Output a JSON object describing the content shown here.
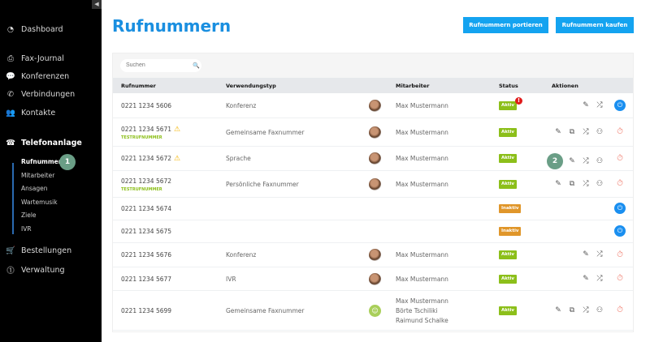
{
  "sidebar": {
    "collapse_icon": "collapse-left-icon",
    "items": [
      {
        "label": "Dashboard",
        "icon": "dashboard-icon",
        "glyph": "◔"
      },
      {
        "label": "Fax-Journal",
        "icon": "printer-icon",
        "glyph": "⎙"
      },
      {
        "label": "Konferenzen",
        "icon": "chat-bubbles-icon",
        "glyph": "💬"
      },
      {
        "label": "Verbindungen",
        "icon": "phone-icon",
        "glyph": "✆"
      },
      {
        "label": "Kontakte",
        "icon": "contacts-icon",
        "glyph": "👥"
      },
      {
        "label": "Telefonanlage",
        "icon": "phone-system-icon",
        "glyph": "☎",
        "active": true
      },
      {
        "label": "Bestellungen",
        "icon": "cart-icon",
        "glyph": "🛒"
      },
      {
        "label": "Verwaltung",
        "icon": "admin-icon",
        "glyph": "⓵"
      }
    ],
    "subitems": [
      {
        "label": "Rufnummern",
        "active": true
      },
      {
        "label": "Mitarbeiter"
      },
      {
        "label": "Ansagen"
      },
      {
        "label": "Wartemusik"
      },
      {
        "label": "Ziele"
      },
      {
        "label": "IVR"
      }
    ],
    "badge": "1"
  },
  "page": {
    "title": "Rufnummern",
    "btn_port": "Rufnummern portieren",
    "btn_buy": "Rufnummern kaufen"
  },
  "search": {
    "placeholder": "Suchen"
  },
  "columns": [
    "Rufnummer",
    "Verwendungstyp",
    "Mitarbeiter",
    "Status",
    "Aktionen"
  ],
  "colors": {
    "accent": "#14a3f0",
    "aktiv": "#8cbf1a",
    "inaktiv": "#e0962a",
    "alert": "#e01b1b"
  },
  "rows": [
    {
      "number": "0221 1234 5606",
      "type": "Konferenz",
      "employees": [
        "Max Mustermann"
      ],
      "status": "Aktiv",
      "alert": "!",
      "actions": [
        "edit",
        "forward"
      ],
      "power": "blue"
    },
    {
      "number": "0221 1234 5671",
      "warning": true,
      "test": "TESTRUFNUMMER",
      "type": "Gemeinsame Faxnummer",
      "employees": [
        "Max Mustermann"
      ],
      "status": "Aktiv",
      "actions": [
        "edit",
        "fax",
        "forward",
        "user"
      ],
      "power": "red"
    },
    {
      "number": "0221 1234 5672",
      "warning": true,
      "type": "Sprache",
      "employees": [
        "Max Mustermann"
      ],
      "status": "Aktiv",
      "badge": "2",
      "actions": [
        "edit",
        "forward",
        "user"
      ],
      "power": "red"
    },
    {
      "number": "0221 1234 5672",
      "test": "TESTRUFNUMMER",
      "type": "Persönliche Faxnummer",
      "employees": [
        "Max Mustermann"
      ],
      "status": "Aktiv",
      "actions": [
        "edit",
        "fax",
        "forward",
        "user"
      ],
      "power": "red"
    },
    {
      "number": "0221 1234 5674",
      "status": "Inaktiv",
      "actions": [],
      "power": "blue"
    },
    {
      "number": "0221 1234 5675",
      "status": "Inaktiv",
      "actions": [],
      "power": "blue"
    },
    {
      "number": "0221 1234 5676",
      "type": "Konferenz",
      "employees": [
        "Max Mustermann"
      ],
      "status": "Aktiv",
      "actions": [
        "edit",
        "forward"
      ],
      "power": "red"
    },
    {
      "number": "0221 1234 5677",
      "type": "IVR",
      "employees": [
        "Max Mustermann"
      ],
      "status": "Aktiv",
      "actions": [
        "edit",
        "forward"
      ],
      "power": "red"
    },
    {
      "number": "0221 1234 5699",
      "type": "Gemeinsame Faxnummer",
      "employees": [
        "Max Mustermann",
        "Börte Tschiliki",
        "Raimund Schalke"
      ],
      "group": true,
      "status": "Aktiv",
      "actions": [
        "edit",
        "fax",
        "forward",
        "user"
      ],
      "power": "red"
    }
  ]
}
